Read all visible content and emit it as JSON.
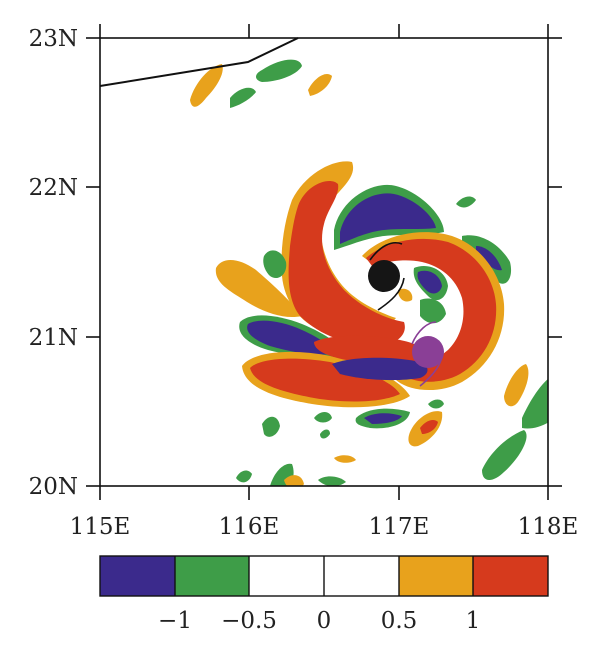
{
  "map": {
    "lat_labels": [
      "23N",
      "22N",
      "21N",
      "20N"
    ],
    "lon_labels": [
      "115E",
      "116E",
      "117E",
      "118E"
    ],
    "extent": {
      "lon": [
        115,
        118
      ],
      "lat": [
        20,
        23
      ]
    }
  },
  "colorbar": {
    "labels": [
      "−1",
      "−0.5",
      "0",
      "0.5",
      "1"
    ],
    "colors": [
      "#3b2a8c",
      "#3e9d48",
      "#ffffff",
      "#ffffff",
      "#e8a21c",
      "#d63a1d"
    ]
  },
  "colors": {
    "purple": "#3b2a8c",
    "green": "#3e9d48",
    "orange": "#e8a21c",
    "red": "#d63a1d",
    "storm_black": "#151515",
    "storm_purple": "#8a3f96"
  }
}
